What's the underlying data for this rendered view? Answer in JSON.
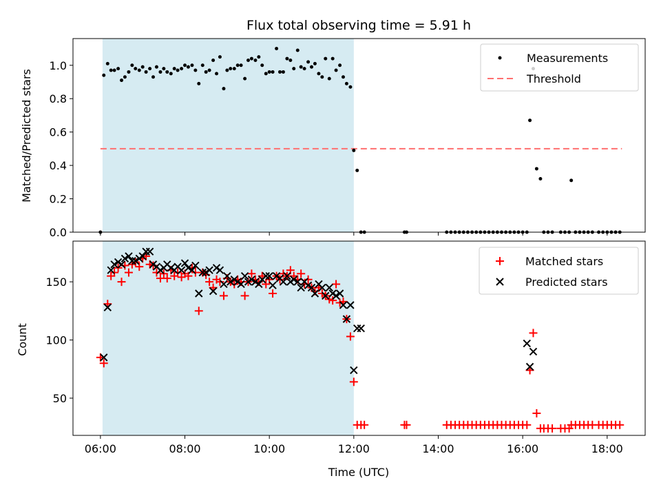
{
  "chart_data": [
    {
      "type": "scatter",
      "title": "Flux total observing time = 5.91 h",
      "xlabel": "",
      "ylabel": "Matched/Predicted stars",
      "xlim": [
        5.35,
        18.9
      ],
      "ylim": [
        0,
        1.16
      ],
      "y_ticks": [
        0.0,
        0.2,
        0.4,
        0.6,
        0.8,
        1.0
      ],
      "y_tick_labels": [
        "0.0",
        "0.2",
        "0.4",
        "0.6",
        "0.8",
        "1.0"
      ],
      "x_ticks": [
        6,
        8,
        10,
        12,
        14,
        16,
        18
      ],
      "shaded_region": {
        "x": [
          6.05,
          12.0
        ],
        "color": "#add8e6"
      },
      "legend": {
        "placement": "top-right",
        "entries": [
          "Measurements",
          "Threshold"
        ]
      },
      "series": [
        {
          "name": "Measurements",
          "marker": "dot",
          "color": "#000000",
          "x": [
            6.0,
            6.08,
            6.17,
            6.25,
            6.33,
            6.42,
            6.5,
            6.58,
            6.67,
            6.75,
            6.83,
            6.92,
            7.0,
            7.08,
            7.17,
            7.25,
            7.33,
            7.42,
            7.5,
            7.58,
            7.67,
            7.75,
            7.83,
            7.92,
            8.0,
            8.08,
            8.17,
            8.25,
            8.33,
            8.42,
            8.5,
            8.58,
            8.67,
            8.75,
            8.83,
            8.92,
            9.0,
            9.08,
            9.17,
            9.25,
            9.33,
            9.42,
            9.5,
            9.58,
            9.67,
            9.75,
            9.83,
            9.92,
            10.0,
            10.08,
            10.17,
            10.25,
            10.33,
            10.42,
            10.5,
            10.58,
            10.67,
            10.75,
            10.83,
            10.92,
            11.0,
            11.08,
            11.17,
            11.25,
            11.33,
            11.42,
            11.5,
            11.58,
            11.67,
            11.75,
            11.83,
            11.92,
            12.0,
            12.08,
            12.17,
            12.25,
            13.2,
            13.25,
            14.2,
            14.3,
            14.4,
            14.5,
            14.6,
            14.7,
            14.8,
            14.9,
            15.0,
            15.1,
            15.2,
            15.3,
            15.4,
            15.5,
            15.6,
            15.7,
            15.8,
            15.9,
            16.0,
            16.1,
            16.17,
            16.25,
            16.33,
            16.42,
            16.5,
            16.6,
            16.7,
            16.9,
            17.0,
            17.1,
            17.15,
            17.25,
            17.35,
            17.45,
            17.55,
            17.65,
            17.8,
            17.9,
            18.0,
            18.1,
            18.2,
            18.3
          ],
          "y": [
            0.0,
            0.94,
            1.01,
            0.97,
            0.97,
            0.98,
            0.91,
            0.93,
            0.96,
            1.0,
            0.98,
            0.97,
            0.99,
            0.96,
            0.98,
            0.93,
            0.99,
            0.96,
            0.98,
            0.96,
            0.95,
            0.98,
            0.97,
            0.98,
            1.0,
            0.99,
            1.0,
            0.97,
            0.89,
            1.0,
            0.96,
            0.97,
            1.03,
            0.95,
            1.05,
            0.86,
            0.97,
            0.98,
            0.98,
            1.0,
            1.0,
            0.92,
            1.03,
            1.04,
            1.03,
            1.05,
            1.0,
            0.95,
            0.96,
            0.96,
            1.1,
            0.96,
            0.96,
            1.04,
            1.03,
            0.98,
            1.09,
            0.99,
            0.98,
            1.02,
            0.99,
            1.01,
            0.95,
            0.93,
            1.04,
            0.92,
            1.04,
            0.97,
            1.0,
            0.93,
            0.89,
            0.87,
            0.49,
            0.37,
            0.0,
            0.0,
            0.0,
            0.0,
            0.0,
            0.0,
            0.0,
            0.0,
            0.0,
            0.0,
            0.0,
            0.0,
            0.0,
            0.0,
            0.0,
            0.0,
            0.0,
            0.0,
            0.0,
            0.0,
            0.0,
            0.0,
            0.0,
            0.0,
            0.67,
            0.98,
            0.38,
            0.32,
            0.0,
            0.0,
            0.0,
            0.0,
            0.0,
            0.0,
            0.31,
            0.0,
            0.0,
            0.0,
            0.0,
            0.0,
            0.0,
            0.0,
            0.0,
            0.0,
            0.0,
            0.0
          ]
        },
        {
          "name": "Threshold",
          "style": "dashed",
          "color": "#ff6f6f",
          "x": [
            6.0,
            18.35
          ],
          "y": [
            0.5,
            0.5
          ]
        }
      ]
    },
    {
      "type": "scatter",
      "title": "",
      "xlabel": "Time (UTC)",
      "ylabel": "Count",
      "xlim": [
        5.35,
        18.9
      ],
      "ylim": [
        18,
        185
      ],
      "y_ticks": [
        50,
        100,
        150
      ],
      "y_tick_labels": [
        "50",
        "100",
        "150"
      ],
      "x_ticks": [
        6,
        8,
        10,
        12,
        14,
        16,
        18
      ],
      "x_tick_labels": [
        "06:00",
        "08:00",
        "10:00",
        "12:00",
        "14:00",
        "16:00",
        "18:00"
      ],
      "shaded_region": {
        "x": [
          6.05,
          12.0
        ],
        "color": "#add8e6"
      },
      "legend": {
        "placement": "top-right",
        "entries": [
          "Matched stars",
          "Predicted stars"
        ]
      },
      "series": [
        {
          "name": "Matched stars",
          "marker": "plus",
          "color": "#ff0000",
          "x": [
            6.0,
            6.08,
            6.17,
            6.25,
            6.33,
            6.42,
            6.5,
            6.58,
            6.67,
            6.75,
            6.83,
            6.92,
            7.0,
            7.08,
            7.17,
            7.25,
            7.33,
            7.42,
            7.5,
            7.58,
            7.67,
            7.75,
            7.83,
            7.92,
            8.0,
            8.08,
            8.17,
            8.25,
            8.33,
            8.42,
            8.5,
            8.58,
            8.67,
            8.75,
            8.83,
            8.92,
            9.0,
            9.08,
            9.17,
            9.25,
            9.33,
            9.42,
            9.5,
            9.58,
            9.67,
            9.75,
            9.83,
            9.92,
            10.0,
            10.08,
            10.17,
            10.25,
            10.33,
            10.42,
            10.5,
            10.58,
            10.67,
            10.75,
            10.83,
            10.92,
            11.0,
            11.08,
            11.17,
            11.25,
            11.33,
            11.42,
            11.5,
            11.58,
            11.67,
            11.75,
            11.83,
            11.92,
            12.0,
            12.08,
            12.17,
            12.25,
            13.2,
            13.25,
            14.2,
            14.3,
            14.4,
            14.5,
            14.6,
            14.7,
            14.8,
            14.9,
            15.0,
            15.1,
            15.2,
            15.3,
            15.4,
            15.5,
            15.6,
            15.7,
            15.8,
            15.9,
            16.0,
            16.1,
            16.17,
            16.25,
            16.33,
            16.42,
            16.5,
            16.6,
            16.7,
            16.9,
            17.0,
            17.1,
            17.15,
            17.25,
            17.35,
            17.45,
            17.55,
            17.65,
            17.8,
            17.9,
            18.0,
            18.1,
            18.2,
            18.3
          ],
          "y": [
            85,
            80,
            131,
            155,
            158,
            162,
            150,
            164,
            158,
            165,
            167,
            163,
            170,
            172,
            165,
            164,
            158,
            153,
            157,
            153,
            160,
            155,
            158,
            154,
            157,
            155,
            162,
            158,
            125,
            158,
            156,
            150,
            145,
            152,
            150,
            138,
            153,
            150,
            148,
            152,
            150,
            138,
            150,
            157,
            152,
            150,
            155,
            148,
            152,
            140,
            155,
            152,
            157,
            155,
            160,
            155,
            152,
            157,
            148,
            152,
            145,
            142,
            145,
            140,
            138,
            135,
            134,
            148,
            132,
            133,
            118,
            103,
            64,
            27,
            27,
            27,
            27,
            27,
            27,
            27,
            27,
            27,
            27,
            27,
            27,
            27,
            27,
            27,
            27,
            27,
            27,
            27,
            27,
            27,
            27,
            27,
            27,
            27,
            74,
            106,
            37,
            24,
            24,
            24,
            24,
            24,
            24,
            24,
            27,
            27,
            27,
            27,
            27,
            27,
            27,
            27,
            27,
            27,
            27,
            27
          ]
        },
        {
          "name": "Predicted stars",
          "marker": "x",
          "color": "#000000",
          "x": [
            6.08,
            6.17,
            6.25,
            6.33,
            6.42,
            6.5,
            6.58,
            6.67,
            6.75,
            6.83,
            6.92,
            7.0,
            7.08,
            7.17,
            7.25,
            7.33,
            7.42,
            7.5,
            7.58,
            7.67,
            7.75,
            7.83,
            7.92,
            8.0,
            8.08,
            8.17,
            8.25,
            8.33,
            8.42,
            8.5,
            8.58,
            8.67,
            8.75,
            8.83,
            8.92,
            9.0,
            9.08,
            9.17,
            9.25,
            9.33,
            9.42,
            9.5,
            9.58,
            9.67,
            9.75,
            9.83,
            9.92,
            10.0,
            10.08,
            10.17,
            10.25,
            10.33,
            10.42,
            10.5,
            10.58,
            10.67,
            10.75,
            10.83,
            10.92,
            11.0,
            11.08,
            11.17,
            11.25,
            11.33,
            11.42,
            11.5,
            11.58,
            11.67,
            11.75,
            11.83,
            11.92,
            12.0,
            12.08,
            12.17,
            16.1,
            16.17,
            16.25,
            16.33,
            17.15
          ],
          "y": [
            85,
            128,
            160,
            165,
            167,
            165,
            170,
            172,
            168,
            168,
            170,
            172,
            176,
            176,
            165,
            163,
            160,
            162,
            165,
            162,
            160,
            163,
            160,
            166,
            162,
            160,
            164,
            140,
            158,
            158,
            160,
            142,
            162,
            160,
            148,
            155,
            150,
            152,
            150,
            148,
            155,
            150,
            152,
            150,
            148,
            152,
            155,
            155,
            147,
            155,
            153,
            150,
            155,
            150,
            152,
            150,
            145,
            150,
            147,
            145,
            140,
            148,
            145,
            138,
            145,
            140,
            138,
            140,
            130,
            118,
            130,
            74,
            110,
            110,
            97,
            77,
            90,
            18,
            18
          ]
        }
      ]
    }
  ]
}
